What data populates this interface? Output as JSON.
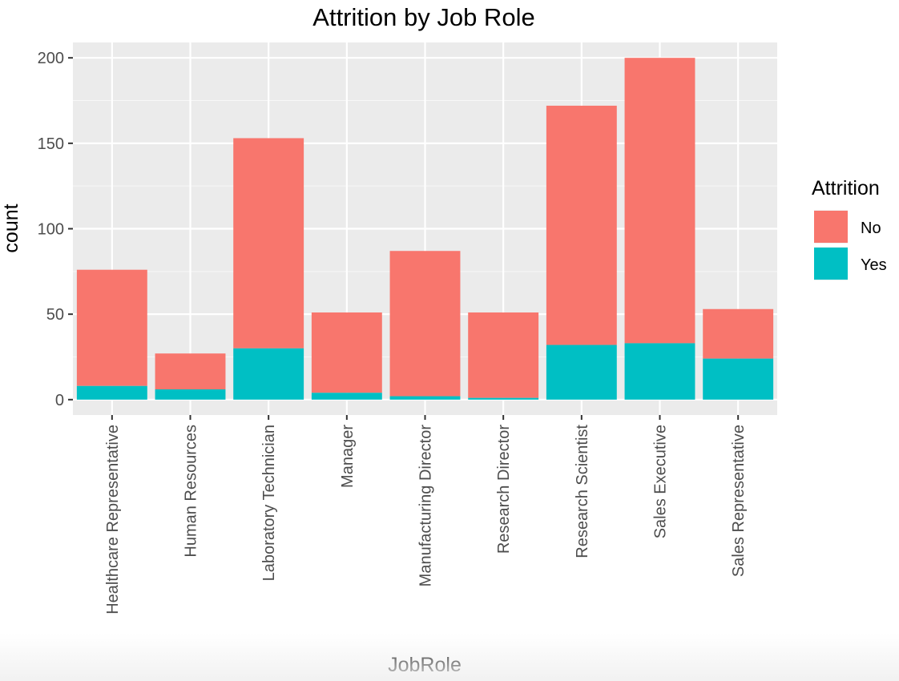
{
  "chart_data": {
    "type": "bar",
    "stacked": true,
    "title": "Attrition by Job Role",
    "xlabel": "JobRole",
    "ylabel": "count",
    "categories": [
      "Healthcare Representative",
      "Human Resources",
      "Laboratory Technician",
      "Manager",
      "Manufacturing Director",
      "Research Director",
      "Research Scientist",
      "Sales Executive",
      "Sales Representative"
    ],
    "series": [
      {
        "name": "No",
        "values": [
          68,
          21,
          123,
          47,
          85,
          50,
          140,
          167,
          29
        ]
      },
      {
        "name": "Yes",
        "values": [
          8,
          6,
          30,
          4,
          2,
          1,
          32,
          33,
          24
        ]
      }
    ],
    "ylim": [
      -9,
      209
    ],
    "yticks": [
      0,
      50,
      100,
      150,
      200
    ],
    "grid": true,
    "legend_title": "Attrition",
    "legend_position": "right",
    "colors": {
      "No": "#F8766D",
      "Yes": "#00BFC4",
      "panel": "#EBEBEB",
      "grid_major": "#FFFFFF",
      "tick_text": "#4D4D4D"
    }
  }
}
